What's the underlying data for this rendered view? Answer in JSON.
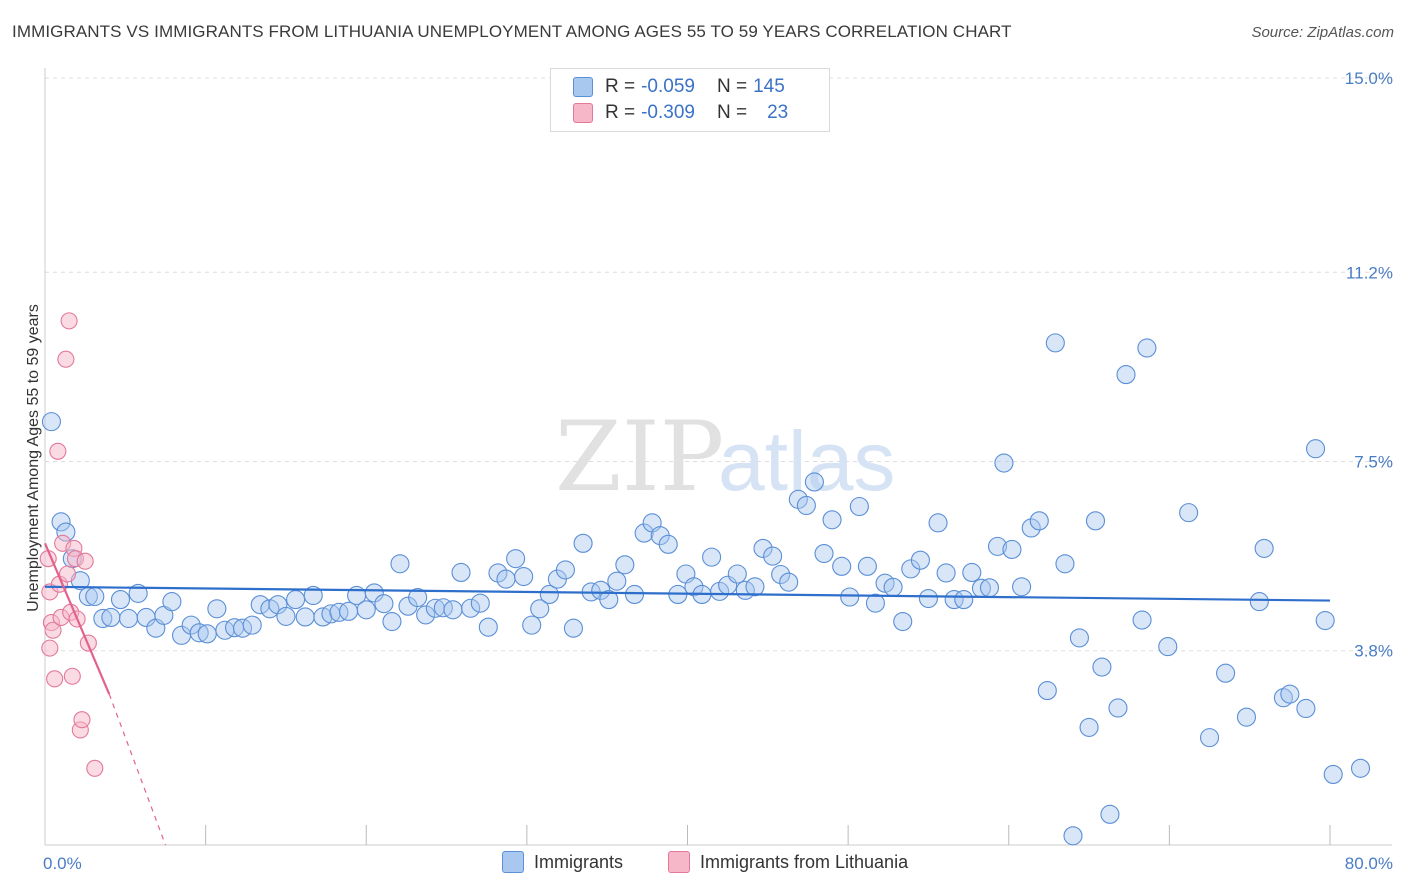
{
  "title": "IMMIGRANTS VS IMMIGRANTS FROM LITHUANIA UNEMPLOYMENT AMONG AGES 55 TO 59 YEARS CORRELATION CHART",
  "source": "Source: ZipAtlas.com",
  "watermark": {
    "zip": "ZIP",
    "atlas": "atlas"
  },
  "legend": {
    "rows": [
      {
        "r_label": "R =",
        "r_value": "-0.059",
        "n_label": "N =",
        "n_value": "145"
      },
      {
        "r_label": "R =",
        "r_value": "-0.309",
        "n_label": "N =",
        "n_value": "23"
      }
    ]
  },
  "bottom_legend": [
    "Immigrants",
    "Immigrants from Lithuania"
  ],
  "colors": {
    "blue_fill": "#a9c8ef",
    "blue_stroke": "#5b8fd6",
    "blue_line": "#2f6fcc",
    "pink_fill": "#f6b8c9",
    "pink_stroke": "#e3789a",
    "pink_line": "#e3628c",
    "grid": "#dddddd",
    "tick_text": "#4a7cc4"
  },
  "chart_data": {
    "type": "scatter",
    "title": "IMMIGRANTS VS IMMIGRANTS FROM LITHUANIA UNEMPLOYMENT AMONG AGES 55 TO 59 YEARS CORRELATION CHART",
    "xlabel": "",
    "ylabel": "Unemployment Among Ages 55 to 59 years",
    "xlim": [
      0,
      80
    ],
    "ylim": [
      0.0,
      15.0
    ],
    "x_tick_labels": [
      "0.0%",
      "80.0%"
    ],
    "y_ticks": [
      3.8,
      7.5,
      11.2,
      15.0
    ],
    "y_tick_labels": [
      "3.8%",
      "7.5%",
      "11.2%",
      "15.0%"
    ],
    "series": [
      {
        "name": "Immigrants",
        "color": "#a9c8ef",
        "trend": {
          "x": [
            0,
            80
          ],
          "y": [
            5.05,
            4.78
          ]
        },
        "points": [
          [
            0.4,
            8.28
          ],
          [
            1.0,
            6.32
          ],
          [
            1.3,
            6.12
          ],
          [
            1.7,
            5.6
          ],
          [
            2.2,
            5.17
          ],
          [
            2.7,
            4.86
          ],
          [
            3.1,
            4.86
          ],
          [
            3.6,
            4.43
          ],
          [
            4.1,
            4.45
          ],
          [
            4.7,
            4.8
          ],
          [
            5.2,
            4.43
          ],
          [
            5.8,
            4.92
          ],
          [
            6.3,
            4.45
          ],
          [
            6.9,
            4.24
          ],
          [
            7.4,
            4.49
          ],
          [
            7.9,
            4.76
          ],
          [
            8.5,
            4.1
          ],
          [
            9.1,
            4.3
          ],
          [
            9.6,
            4.15
          ],
          [
            10.1,
            4.13
          ],
          [
            10.7,
            4.62
          ],
          [
            11.2,
            4.2
          ],
          [
            11.8,
            4.25
          ],
          [
            12.3,
            4.24
          ],
          [
            12.9,
            4.3
          ],
          [
            13.4,
            4.7
          ],
          [
            14.0,
            4.62
          ],
          [
            14.5,
            4.7
          ],
          [
            15.0,
            4.47
          ],
          [
            15.6,
            4.8
          ],
          [
            16.2,
            4.46
          ],
          [
            16.7,
            4.88
          ],
          [
            17.3,
            4.46
          ],
          [
            17.8,
            4.52
          ],
          [
            18.3,
            4.55
          ],
          [
            18.9,
            4.57
          ],
          [
            19.4,
            4.88
          ],
          [
            20.0,
            4.6
          ],
          [
            20.5,
            4.93
          ],
          [
            21.1,
            4.72
          ],
          [
            21.6,
            4.37
          ],
          [
            22.1,
            5.5
          ],
          [
            22.6,
            4.67
          ],
          [
            23.2,
            4.84
          ],
          [
            23.7,
            4.5
          ],
          [
            24.3,
            4.63
          ],
          [
            24.8,
            4.64
          ],
          [
            25.4,
            4.6
          ],
          [
            25.9,
            5.33
          ],
          [
            26.5,
            4.63
          ],
          [
            27.1,
            4.73
          ],
          [
            27.6,
            4.26
          ],
          [
            28.2,
            5.32
          ],
          [
            28.7,
            5.2
          ],
          [
            29.3,
            5.6
          ],
          [
            29.8,
            5.25
          ],
          [
            30.3,
            4.3
          ],
          [
            30.8,
            4.62
          ],
          [
            31.4,
            4.9
          ],
          [
            31.9,
            5.2
          ],
          [
            32.4,
            5.38
          ],
          [
            32.9,
            4.24
          ],
          [
            33.5,
            5.9
          ],
          [
            34.0,
            4.95
          ],
          [
            34.6,
            4.98
          ],
          [
            35.1,
            4.8
          ],
          [
            35.6,
            5.16
          ],
          [
            36.1,
            5.48
          ],
          [
            36.7,
            4.9
          ],
          [
            37.3,
            6.1
          ],
          [
            37.8,
            6.3
          ],
          [
            38.3,
            6.05
          ],
          [
            38.8,
            5.88
          ],
          [
            39.4,
            4.9
          ],
          [
            39.9,
            5.3
          ],
          [
            40.4,
            5.05
          ],
          [
            40.9,
            4.9
          ],
          [
            41.5,
            5.63
          ],
          [
            42.0,
            4.96
          ],
          [
            42.5,
            5.08
          ],
          [
            43.1,
            5.3
          ],
          [
            43.6,
            4.98
          ],
          [
            44.2,
            5.05
          ],
          [
            44.7,
            5.8
          ],
          [
            45.3,
            5.65
          ],
          [
            45.8,
            5.29
          ],
          [
            46.3,
            5.14
          ],
          [
            46.9,
            6.76
          ],
          [
            47.4,
            6.64
          ],
          [
            47.9,
            7.1
          ],
          [
            48.5,
            5.7
          ],
          [
            49.0,
            6.36
          ],
          [
            49.6,
            5.45
          ],
          [
            50.1,
            4.85
          ],
          [
            50.7,
            6.62
          ],
          [
            51.2,
            5.45
          ],
          [
            51.7,
            4.73
          ],
          [
            52.3,
            5.12
          ],
          [
            52.8,
            5.04
          ],
          [
            53.4,
            4.37
          ],
          [
            53.9,
            5.4
          ],
          [
            54.5,
            5.57
          ],
          [
            55.0,
            4.82
          ],
          [
            55.6,
            6.3
          ],
          [
            56.1,
            5.32
          ],
          [
            56.6,
            4.8
          ],
          [
            57.2,
            4.8
          ],
          [
            57.7,
            5.33
          ],
          [
            58.3,
            5.02
          ],
          [
            58.8,
            5.03
          ],
          [
            59.3,
            5.84
          ],
          [
            59.7,
            7.47
          ],
          [
            60.2,
            5.78
          ],
          [
            60.8,
            5.05
          ],
          [
            61.4,
            6.2
          ],
          [
            61.9,
            6.34
          ],
          [
            62.4,
            3.02
          ],
          [
            62.9,
            9.82
          ],
          [
            63.5,
            5.5
          ],
          [
            64.0,
            0.18
          ],
          [
            64.4,
            4.05
          ],
          [
            65.0,
            2.3
          ],
          [
            65.4,
            6.34
          ],
          [
            65.8,
            3.48
          ],
          [
            66.3,
            0.6
          ],
          [
            66.8,
            2.68
          ],
          [
            67.3,
            9.2
          ],
          [
            68.3,
            4.4
          ],
          [
            68.6,
            9.72
          ],
          [
            69.9,
            3.88
          ],
          [
            71.2,
            6.5
          ],
          [
            72.5,
            2.1
          ],
          [
            73.5,
            3.36
          ],
          [
            74.8,
            2.5
          ],
          [
            75.6,
            4.76
          ],
          [
            75.9,
            5.8
          ],
          [
            77.1,
            2.88
          ],
          [
            77.5,
            2.95
          ],
          [
            78.5,
            2.67
          ],
          [
            79.1,
            7.75
          ],
          [
            79.7,
            4.39
          ],
          [
            80.2,
            1.38
          ],
          [
            81.9,
            1.5
          ]
        ]
      },
      {
        "name": "Immigrants from Lithuania",
        "color": "#f6b8c9",
        "trend": {
          "x": [
            0,
            4.0
          ],
          "y": [
            5.9,
            2.95
          ],
          "dashed_to": {
            "x": 7.5,
            "y": 0.0
          }
        },
        "points": [
          [
            0.2,
            5.6
          ],
          [
            0.3,
            4.95
          ],
          [
            0.4,
            4.35
          ],
          [
            0.5,
            4.2
          ],
          [
            0.6,
            3.25
          ],
          [
            0.8,
            7.7
          ],
          [
            0.9,
            5.1
          ],
          [
            1.0,
            4.45
          ],
          [
            1.1,
            5.9
          ],
          [
            1.3,
            9.5
          ],
          [
            1.4,
            5.3
          ],
          [
            1.5,
            10.25
          ],
          [
            1.6,
            4.55
          ],
          [
            1.7,
            3.3
          ],
          [
            1.8,
            5.8
          ],
          [
            1.9,
            5.6
          ],
          [
            2.0,
            4.42
          ],
          [
            2.2,
            2.25
          ],
          [
            2.3,
            2.45
          ],
          [
            2.5,
            5.55
          ],
          [
            2.7,
            3.95
          ],
          [
            3.1,
            1.5
          ],
          [
            0.3,
            3.85
          ]
        ]
      }
    ]
  }
}
